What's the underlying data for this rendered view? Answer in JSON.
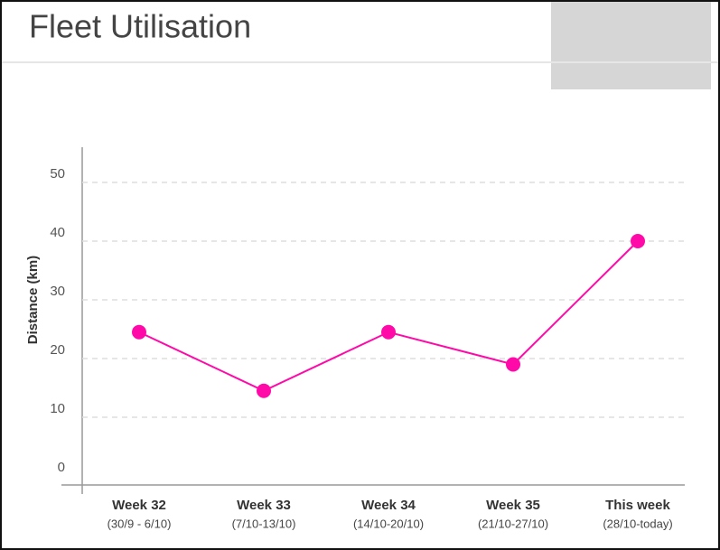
{
  "chart_data": {
    "type": "line",
    "title": "Fleet Utilisation",
    "y_label": "Distance (km)",
    "categories": [
      "Week 32",
      "Week 33",
      "Week 34",
      "Week 35",
      "This week"
    ],
    "category_subtitles": [
      "(30/9 - 6/10)",
      "(7/10-13/10)",
      "(14/10-20/10)",
      "(21/10-27/10)",
      "(28/10-today)"
    ],
    "values": [
      24.5,
      14.5,
      24.5,
      19,
      40
    ],
    "color": "#ff0aa8",
    "ylim": [
      0,
      50
    ],
    "yticks": [
      0,
      10,
      20,
      30,
      40,
      50
    ],
    "grid": true
  }
}
